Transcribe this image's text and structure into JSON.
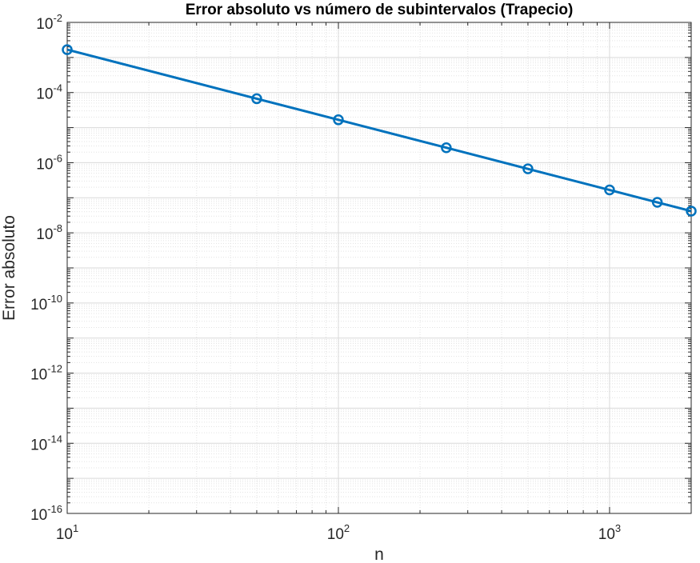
{
  "chart_data": {
    "type": "line",
    "title": "Error absoluto vs número de subintervalos (Trapecio)",
    "xlabel": "n",
    "ylabel": "Error absoluto",
    "xscale": "log",
    "yscale": "log",
    "xlim": [
      10,
      2000
    ],
    "ylim": [
      1e-16,
      0.01
    ],
    "grid": true,
    "minor_grid": true,
    "x_tick_labels": [
      {
        "value": 10,
        "base": "10",
        "exp": "1"
      },
      {
        "value": 100,
        "base": "10",
        "exp": "2"
      },
      {
        "value": 1000,
        "base": "10",
        "exp": "3"
      }
    ],
    "y_tick_labels": [
      {
        "value": 1e-16,
        "base": "10",
        "exp": "-16"
      },
      {
        "value": 1e-14,
        "base": "10",
        "exp": "-14"
      },
      {
        "value": 1e-12,
        "base": "10",
        "exp": "-12"
      },
      {
        "value": 1e-10,
        "base": "10",
        "exp": "-10"
      },
      {
        "value": 1e-08,
        "base": "10",
        "exp": "-8"
      },
      {
        "value": 1e-06,
        "base": "10",
        "exp": "-6"
      },
      {
        "value": 0.0001,
        "base": "10",
        "exp": "-4"
      },
      {
        "value": 0.01,
        "base": "10",
        "exp": "-2"
      }
    ],
    "series": [
      {
        "color": "#0072BD",
        "marker": "circle",
        "x": [
          10,
          50,
          100,
          250,
          500,
          1000,
          1500,
          2000
        ],
        "y": [
          0.00167,
          6.67e-05,
          1.67e-05,
          2.67e-06,
          6.67e-07,
          1.67e-07,
          7.4e-08,
          4.17e-08
        ]
      }
    ]
  }
}
